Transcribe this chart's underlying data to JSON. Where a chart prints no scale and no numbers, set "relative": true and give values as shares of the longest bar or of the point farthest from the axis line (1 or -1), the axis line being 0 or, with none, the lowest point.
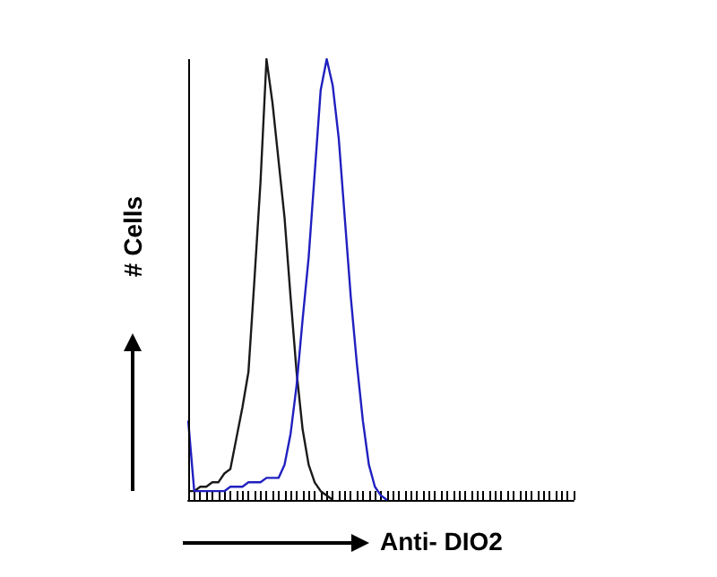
{
  "chart_data": {
    "type": "line",
    "xlabel": "Anti- DIO2",
    "ylabel": "# Cells",
    "relative": true,
    "grid": false,
    "marker": "none",
    "line_style": "solid",
    "categories": [
      null,
      null,
      null,
      null,
      null,
      null,
      null,
      null,
      null,
      null,
      null,
      null,
      null,
      null,
      null,
      null,
      null,
      null,
      null,
      null,
      null,
      null,
      null,
      null,
      null,
      null,
      null,
      null,
      null,
      null,
      null,
      null,
      null,
      null,
      null,
      null,
      null,
      null,
      null,
      null,
      null,
      null,
      null,
      null,
      null,
      null,
      null,
      null,
      null,
      null,
      null,
      null,
      null,
      null,
      null,
      null,
      null,
      null,
      null,
      null,
      null,
      null,
      null,
      null,
      null
    ],
    "series": [
      {
        "color": "#1a1a1a",
        "values": [
          0.02,
          0.02,
          0.03,
          0.03,
          0.04,
          0.04,
          0.06,
          0.07,
          0.14,
          0.21,
          0.29,
          0.5,
          0.72,
          1,
          0.9,
          0.77,
          0.64,
          0.46,
          0.29,
          0.16,
          0.08,
          0.04,
          0.02,
          0.01,
          0,
          null,
          null,
          null,
          null,
          null,
          null,
          null,
          null,
          null,
          null,
          null,
          null,
          null,
          null,
          null,
          null,
          null,
          null,
          null,
          null,
          null,
          null,
          null,
          null,
          null,
          null,
          null,
          null,
          null,
          null,
          null,
          null,
          null,
          null,
          null,
          null,
          null,
          null,
          null,
          null
        ]
      },
      {
        "color": "#2020c0",
        "values": [
          0.18,
          0.02,
          0.02,
          0.02,
          0.02,
          0.02,
          0.02,
          0.03,
          0.03,
          0.03,
          0.04,
          0.04,
          0.04,
          0.05,
          0.05,
          0.05,
          0.08,
          0.15,
          0.26,
          0.41,
          0.55,
          0.74,
          0.93,
          1,
          0.94,
          0.82,
          0.64,
          0.46,
          0.31,
          0.18,
          0.08,
          0.03,
          0.01,
          0,
          null,
          null,
          null,
          null,
          null,
          null,
          null,
          null,
          null,
          null,
          null,
          null,
          null,
          null,
          null,
          null,
          null,
          null,
          null,
          null,
          null,
          null,
          null,
          null,
          null,
          null,
          null,
          null,
          null,
          null,
          null
        ]
      }
    ]
  }
}
